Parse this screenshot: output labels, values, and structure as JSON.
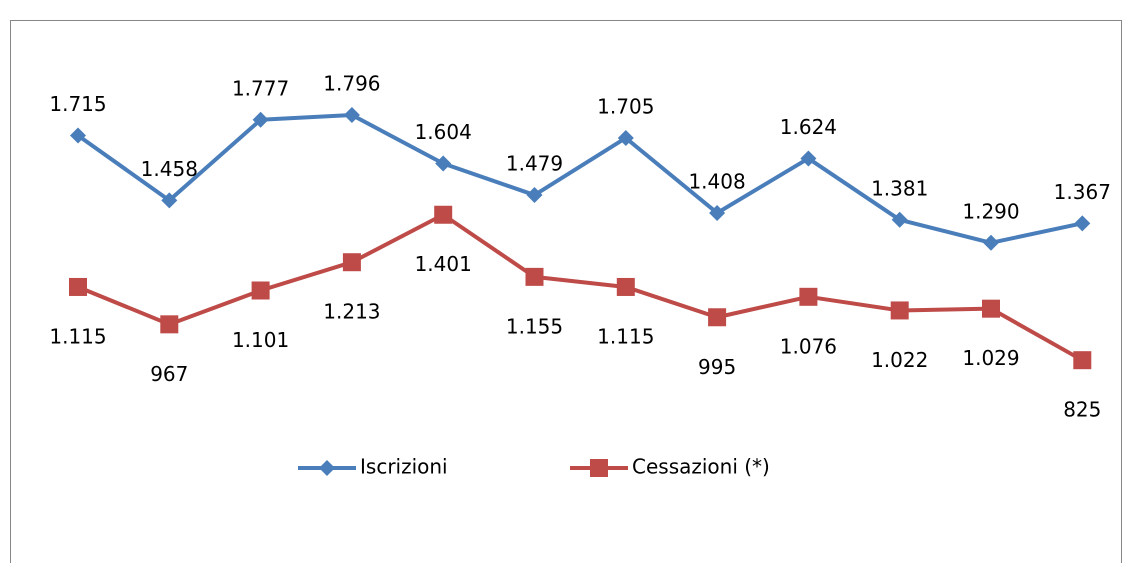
{
  "chart_data": {
    "type": "line",
    "categories": [
      null,
      null,
      null,
      null,
      null,
      null,
      null,
      null,
      null,
      null,
      null,
      null
    ],
    "series": [
      {
        "name": "Iscrizioni",
        "color": "#4a7ebb",
        "marker": "diamond",
        "values": [
          1715,
          1458,
          1777,
          1796,
          1604,
          1479,
          1705,
          1408,
          1624,
          1381,
          1290,
          1367
        ],
        "value_labels": [
          "1.715",
          "1.458",
          "1.777",
          "1.796",
          "1.604",
          "1.479",
          "1.705",
          "1.408",
          "1.624",
          "1.381",
          "1.290",
          "1.367"
        ]
      },
      {
        "name": "Cessazioni (*)",
        "color": "#be4b48",
        "marker": "square",
        "values": [
          1115,
          967,
          1101,
          1213,
          1401,
          1155,
          1115,
          995,
          1076,
          1022,
          1029,
          825
        ],
        "value_labels": [
          "1.115",
          "967",
          "1.101",
          "1.213",
          "1.401",
          "1.155",
          "1.115",
          "995",
          "1.076",
          "1.022",
          "1.029",
          "825"
        ]
      }
    ],
    "legend": "bottom"
  }
}
